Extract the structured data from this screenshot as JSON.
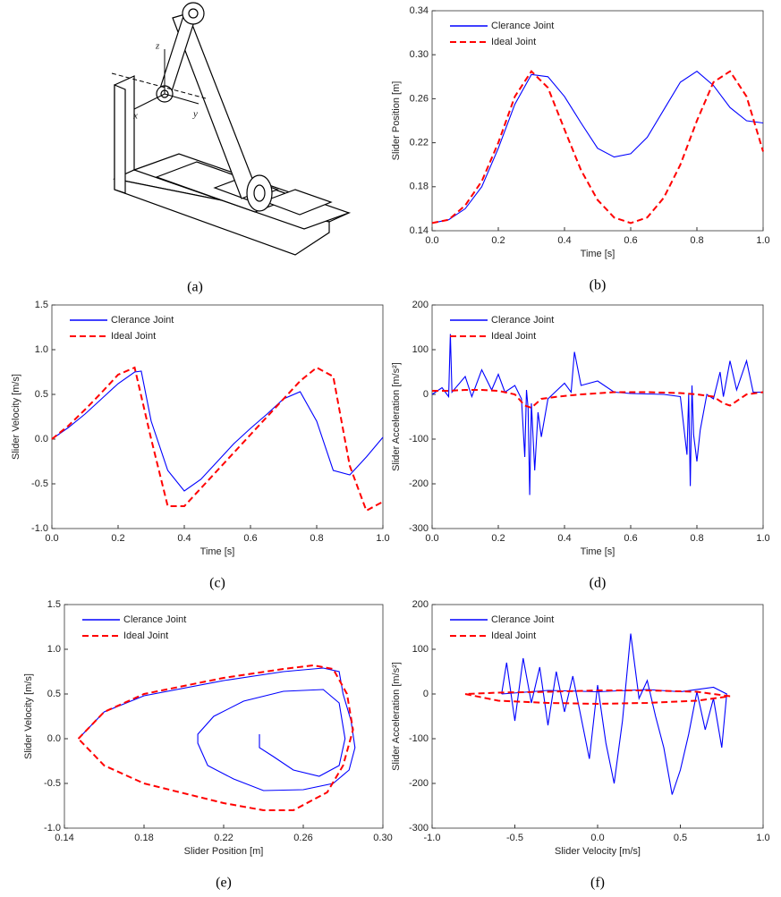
{
  "diagram": {
    "labels": {
      "z": "z",
      "x": "x",
      "y": "y"
    },
    "caption": "(a)"
  },
  "chart_data": [
    {
      "type": "line",
      "caption": "(b)",
      "xlabel": "Time [s]",
      "ylabel": "Slider Position [m]",
      "legend": "upper left",
      "xlim": [
        0,
        1
      ],
      "ylim": [
        0.14,
        0.34
      ],
      "xticks": [
        {
          "value": 0,
          "label": "0.0"
        },
        0.2,
        0.4,
        0.6,
        0.8,
        {
          "value": 1,
          "label": "1.0"
        }
      ],
      "yticks": [
        0.14,
        0.18,
        0.22,
        0.26,
        {
          "value": 0.3,
          "label": "0.30"
        },
        0.34
      ],
      "series": [
        {
          "name": "Clerance Joint",
          "color": "#0000ff",
          "dash": false,
          "x": [
            0,
            0.05,
            0.1,
            0.15,
            0.2,
            0.25,
            0.3,
            0.35,
            0.4,
            0.45,
            0.5,
            0.55,
            0.6,
            0.65,
            0.7,
            0.75,
            0.8,
            0.85,
            0.9,
            0.95,
            1
          ],
          "values": [
            0.147,
            0.15,
            0.16,
            0.18,
            0.215,
            0.255,
            0.282,
            0.28,
            0.262,
            0.238,
            0.215,
            0.207,
            0.21,
            0.225,
            0.25,
            0.275,
            0.285,
            0.272,
            0.252,
            0.24,
            0.238
          ]
        },
        {
          "name": "Ideal Joint",
          "color": "#ff0000",
          "dash": true,
          "x": [
            0,
            0.05,
            0.1,
            0.15,
            0.2,
            0.25,
            0.3,
            0.35,
            0.4,
            0.45,
            0.5,
            0.55,
            0.6,
            0.65,
            0.7,
            0.75,
            0.8,
            0.85,
            0.9,
            0.95,
            1
          ],
          "values": [
            0.147,
            0.15,
            0.163,
            0.185,
            0.22,
            0.262,
            0.285,
            0.27,
            0.232,
            0.195,
            0.168,
            0.152,
            0.147,
            0.152,
            0.17,
            0.2,
            0.24,
            0.275,
            0.285,
            0.262,
            0.212
          ]
        }
      ]
    },
    {
      "type": "line",
      "caption": "(c)",
      "xlabel": "Time [s]",
      "ylabel": "Slider Velocity [m/s]",
      "legend": "upper left",
      "xlim": [
        0,
        1
      ],
      "ylim": [
        -1,
        1.5
      ],
      "xticks": [
        {
          "value": 0,
          "label": "0.0"
        },
        0.2,
        0.4,
        0.6,
        0.8,
        {
          "value": 1,
          "label": "1.0"
        }
      ],
      "yticks": [
        {
          "value": -1,
          "label": "-1.0"
        },
        -0.5,
        {
          "value": 0,
          "label": "0.0"
        },
        0.5,
        {
          "value": 1,
          "label": "1.0"
        },
        1.5
      ],
      "series": [
        {
          "name": "Clerance Joint",
          "color": "#0000ff",
          "dash": false,
          "x": [
            0,
            0.05,
            0.1,
            0.15,
            0.2,
            0.25,
            0.27,
            0.3,
            0.35,
            0.4,
            0.45,
            0.5,
            0.55,
            0.6,
            0.65,
            0.7,
            0.75,
            0.8,
            0.85,
            0.9,
            0.95,
            1
          ],
          "values": [
            0,
            0.13,
            0.28,
            0.45,
            0.62,
            0.75,
            0.76,
            0.2,
            -0.35,
            -0.58,
            -0.45,
            -0.25,
            -0.05,
            0.12,
            0.28,
            0.45,
            0.53,
            0.2,
            -0.35,
            -0.4,
            -0.2,
            0.02
          ]
        },
        {
          "name": "Ideal Joint",
          "color": "#ff0000",
          "dash": true,
          "x": [
            0,
            0.05,
            0.1,
            0.15,
            0.2,
            0.25,
            0.3,
            0.35,
            0.4,
            0.45,
            0.5,
            0.55,
            0.6,
            0.65,
            0.7,
            0.75,
            0.8,
            0.85,
            0.9,
            0.95,
            1
          ],
          "values": [
            0,
            0.15,
            0.33,
            0.52,
            0.72,
            0.8,
            0,
            -0.75,
            -0.75,
            -0.55,
            -0.35,
            -0.15,
            0.05,
            0.25,
            0.45,
            0.65,
            0.8,
            0.7,
            -0.3,
            -0.8,
            -0.7
          ]
        }
      ]
    },
    {
      "type": "line",
      "caption": "(d)",
      "xlabel": "Time [s]",
      "ylabel": "Slider Acceleration [m/s²]",
      "legend": "upper left",
      "xlim": [
        0,
        1
      ],
      "ylim": [
        -300,
        200
      ],
      "xticks": [
        {
          "value": 0,
          "label": "0.0"
        },
        0.2,
        0.4,
        0.6,
        0.8,
        {
          "value": 1,
          "label": "1.0"
        }
      ],
      "yticks": [
        -300,
        -200,
        -100,
        0,
        100,
        200
      ],
      "series": [
        {
          "name": "Clerance Joint",
          "color": "#0000ff",
          "dash": false,
          "x": [
            0,
            0.03,
            0.05,
            0.055,
            0.06,
            0.1,
            0.12,
            0.15,
            0.18,
            0.2,
            0.22,
            0.25,
            0.27,
            0.28,
            0.285,
            0.29,
            0.295,
            0.3,
            0.31,
            0.32,
            0.33,
            0.35,
            0.4,
            0.42,
            0.43,
            0.45,
            0.5,
            0.55,
            0.6,
            0.7,
            0.75,
            0.77,
            0.775,
            0.78,
            0.785,
            0.79,
            0.8,
            0.81,
            0.83,
            0.85,
            0.87,
            0.88,
            0.9,
            0.92,
            0.95,
            0.97,
            1
          ],
          "values": [
            0,
            15,
            -5,
            135,
            5,
            40,
            -5,
            55,
            10,
            45,
            5,
            20,
            -10,
            -140,
            10,
            -30,
            -225,
            -20,
            -170,
            -40,
            -95,
            -10,
            25,
            5,
            95,
            20,
            30,
            5,
            2,
            0,
            -5,
            -135,
            0,
            -205,
            20,
            -90,
            -150,
            -80,
            0,
            -10,
            50,
            -5,
            75,
            10,
            75,
            5,
            5
          ]
        },
        {
          "name": "Ideal Joint",
          "color": "#ff0000",
          "dash": true,
          "x": [
            0,
            0.05,
            0.1,
            0.15,
            0.2,
            0.25,
            0.28,
            0.3,
            0.33,
            0.38,
            0.45,
            0.55,
            0.65,
            0.75,
            0.8,
            0.85,
            0.88,
            0.9,
            0.95,
            1
          ],
          "values": [
            8,
            8,
            10,
            10,
            8,
            0,
            -25,
            -30,
            -10,
            -5,
            0,
            5,
            5,
            3,
            0,
            -5,
            -20,
            -25,
            0,
            5
          ]
        }
      ]
    },
    {
      "type": "line",
      "caption": "(e)",
      "xlabel": "Slider Position [m]",
      "ylabel": "Slider Velocity [m/s]",
      "legend": "upper left",
      "xlim": [
        0.14,
        0.3
      ],
      "ylim": [
        -1,
        1.5
      ],
      "xticks": [
        0.14,
        0.18,
        0.22,
        0.26,
        {
          "value": 0.3,
          "label": "0.30"
        }
      ],
      "yticks": [
        {
          "value": -1,
          "label": "-1.0"
        },
        -0.5,
        {
          "value": 0,
          "label": "0.0"
        },
        0.5,
        {
          "value": 1,
          "label": "1.0"
        },
        1.5
      ],
      "series": [
        {
          "name": "Clerance Joint",
          "color": "#0000ff",
          "dash": false,
          "x": [
            0.147,
            0.16,
            0.18,
            0.22,
            0.25,
            0.27,
            0.278,
            0.28,
            0.284,
            0.286,
            0.283,
            0.275,
            0.26,
            0.24,
            0.225,
            0.212,
            0.207,
            0.207,
            0.215,
            0.23,
            0.25,
            0.27,
            0.278,
            0.281,
            0.278,
            0.268,
            0.255,
            0.245,
            0.238,
            0.238
          ],
          "values": [
            0,
            0.3,
            0.48,
            0.65,
            0.75,
            0.79,
            0.75,
            0.5,
            0.2,
            -0.1,
            -0.35,
            -0.5,
            -0.57,
            -0.58,
            -0.45,
            -0.3,
            -0.05,
            0.05,
            0.25,
            0.42,
            0.53,
            0.55,
            0.4,
            0,
            -0.3,
            -0.42,
            -0.35,
            -0.2,
            -0.1,
            0.05
          ]
        },
        {
          "name": "Ideal Joint",
          "color": "#ff0000",
          "dash": true,
          "x": [
            0.147,
            0.16,
            0.18,
            0.22,
            0.25,
            0.265,
            0.275,
            0.282,
            0.285,
            0.28,
            0.272,
            0.255,
            0.24,
            0.22,
            0.18,
            0.16,
            0.147
          ],
          "values": [
            0,
            0.3,
            0.5,
            0.68,
            0.78,
            0.82,
            0.78,
            0.5,
            0.1,
            -0.3,
            -0.6,
            -0.8,
            -0.8,
            -0.72,
            -0.5,
            -0.3,
            0
          ]
        }
      ]
    },
    {
      "type": "line",
      "caption": "(f)",
      "xlabel": "Slider Velocity [m/s]",
      "ylabel": "Slider Acceleration [m/s²]",
      "legend": "upper left",
      "xlim": [
        -1,
        1
      ],
      "ylim": [
        -300,
        200
      ],
      "xticks": [
        {
          "value": -1,
          "label": "-1.0"
        },
        -0.5,
        {
          "value": 0,
          "label": "0.0"
        },
        0.5,
        {
          "value": 1,
          "label": "1.0"
        }
      ],
      "yticks": [
        -300,
        -200,
        -100,
        0,
        100,
        200
      ],
      "series": [
        {
          "name": "Clerance Joint",
          "color": "#0000ff",
          "dash": false,
          "x": [
            -0.58,
            -0.55,
            -0.5,
            -0.45,
            -0.4,
            -0.35,
            -0.3,
            -0.25,
            -0.2,
            -0.15,
            -0.05,
            0,
            0.05,
            0.1,
            0.15,
            0.2,
            0.25,
            0.3,
            0.35,
            0.4,
            0.45,
            0.5,
            0.55,
            0.6,
            0.65,
            0.7,
            0.75,
            0.78,
            0.7,
            0.5,
            0.3,
            0,
            -0.3,
            -0.58
          ],
          "values": [
            0,
            70,
            -60,
            80,
            -20,
            60,
            -70,
            50,
            -40,
            40,
            -145,
            20,
            -110,
            -200,
            -60,
            135,
            -10,
            30,
            -50,
            -120,
            -225,
            -170,
            -90,
            5,
            -80,
            -10,
            -120,
            0,
            15,
            5,
            10,
            5,
            8,
            0
          ]
        },
        {
          "name": "Ideal Joint",
          "color": "#ff0000",
          "dash": true,
          "x": [
            -0.8,
            -0.6,
            -0.3,
            0,
            0.3,
            0.6,
            0.8,
            0.6,
            0.3,
            0,
            -0.3,
            -0.6,
            -0.8
          ],
          "values": [
            0,
            -15,
            -20,
            -22,
            -20,
            -15,
            -5,
            5,
            8,
            8,
            5,
            3,
            0
          ]
        }
      ]
    }
  ]
}
